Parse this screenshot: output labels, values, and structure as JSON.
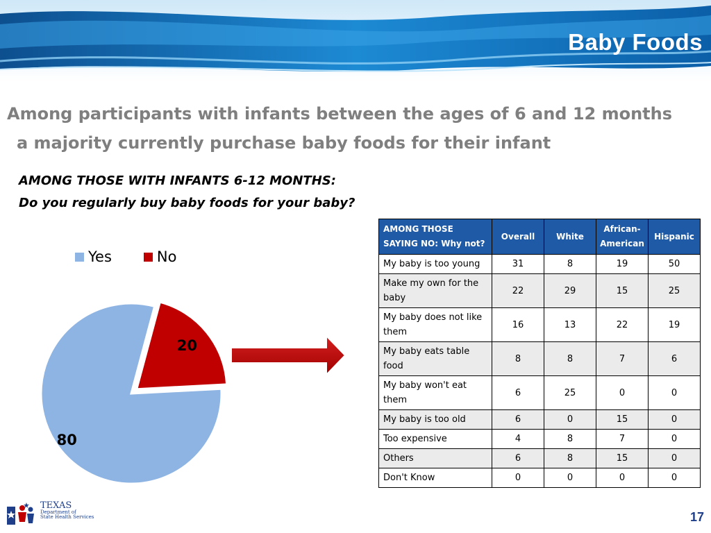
{
  "slide": {
    "title": "Baby Foods",
    "headline_line1": "Among participants with infants between the ages of 6 and 12 months",
    "headline_line2": "a majority currently purchase baby foods for their infant",
    "question_line1": "AMONG THOSE WITH INFANTS 6-12 MONTHS:",
    "question_line2": "Do you regularly buy baby foods for your baby?",
    "page_number": "17"
  },
  "logo": {
    "name": "TEXAS",
    "line2": "Department of",
    "line3": "State Health Services"
  },
  "colors": {
    "yes": "#8eb4e3",
    "no": "#c00000",
    "header_blue": "#1f5aa6"
  },
  "chart_data": {
    "type": "pie",
    "categories": [
      "Yes",
      "No"
    ],
    "values": [
      80,
      20
    ],
    "labels": [
      "80",
      "20"
    ],
    "exploded": "No",
    "legend_position": "top"
  },
  "table": {
    "headers": [
      "AMONG THOSE SAYING NO: Why not?",
      "Overall",
      "White",
      "African-American",
      "Hispanic"
    ],
    "rows": [
      [
        "My baby is too young",
        "31",
        "8",
        "19",
        "50"
      ],
      [
        "Make my own for the baby",
        "22",
        "29",
        "15",
        "25"
      ],
      [
        "My baby does not like them",
        "16",
        "13",
        "22",
        "19"
      ],
      [
        "My baby eats table food",
        "8",
        "8",
        "7",
        "6"
      ],
      [
        "My baby won't eat them",
        "6",
        "25",
        "0",
        "0"
      ],
      [
        "My baby is too old",
        "6",
        "0",
        "15",
        "0"
      ],
      [
        "Too expensive",
        "4",
        "8",
        "7",
        "0"
      ],
      [
        "Others",
        "6",
        "8",
        "15",
        "0"
      ],
      [
        "Don't Know",
        "0",
        "0",
        "0",
        "0"
      ]
    ]
  }
}
